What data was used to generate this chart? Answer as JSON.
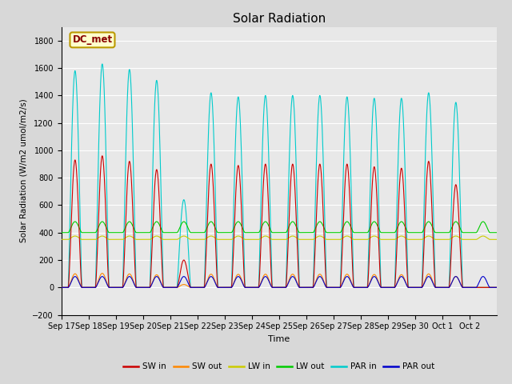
{
  "title": "Solar Radiation",
  "ylabel": "Solar Radiation (W/m2 umol/m2/s)",
  "xlabel": "Time",
  "ylim": [
    -200,
    1900
  ],
  "yticks": [
    -200,
    0,
    200,
    400,
    600,
    800,
    1000,
    1200,
    1400,
    1600,
    1800
  ],
  "annotation_text": "DC_met",
  "annotation_bg": "#ffffcc",
  "annotation_border": "#bb9900",
  "colors": {
    "SW_in": "#cc0000",
    "SW_out": "#ff8800",
    "LW_in": "#cccc00",
    "LW_out": "#00cc00",
    "PAR_in": "#00cccc",
    "PAR_out": "#0000cc"
  },
  "xtick_labels": [
    "Sep 17",
    "Sep 18",
    "Sep 19",
    "Sep 20",
    "Sep 21",
    "Sep 22",
    "Sep 23",
    "Sep 24",
    "Sep 25",
    "Sep 26",
    "Sep 27",
    "Sep 28",
    "Sep 29",
    "Sep 30",
    "Oct 1",
    "Oct 2"
  ],
  "n_days": 16,
  "lw": 0.8,
  "SW_in_peak": [
    930,
    960,
    920,
    860,
    200,
    900,
    890,
    900,
    900,
    900,
    900,
    880,
    870,
    920,
    750,
    0
  ],
  "PAR_in_peak": [
    1580,
    1630,
    1590,
    1510,
    640,
    1420,
    1390,
    1400,
    1400,
    1400,
    1390,
    1380,
    1380,
    1420,
    1350,
    0
  ]
}
